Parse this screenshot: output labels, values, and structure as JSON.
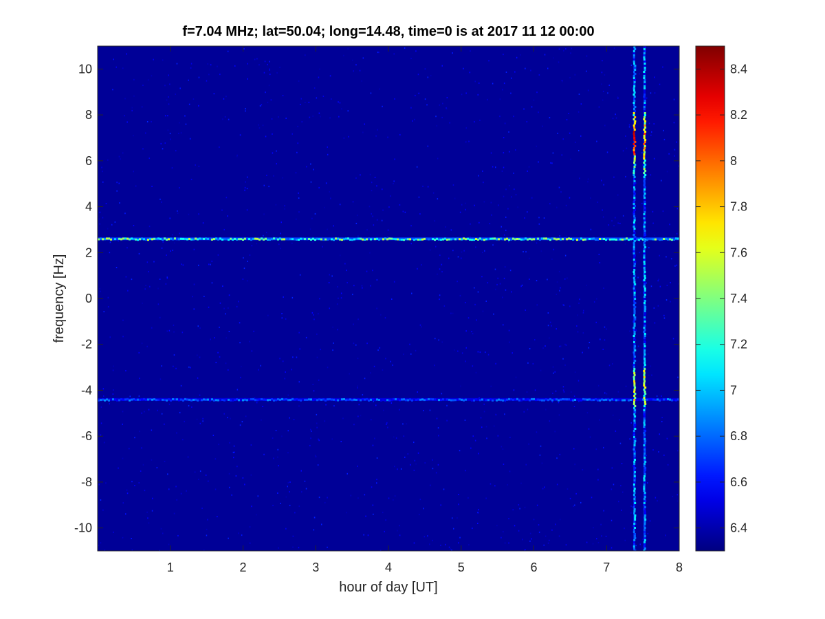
{
  "chart_data": {
    "type": "heatmap",
    "title": "f=7.04 MHz;  lat=50.04; long=14.48, time=0 is at 2017 11 12 00:00",
    "xlabel": "hour of day [UT]",
    "ylabel": "frequency [Hz]",
    "xlim": [
      0,
      8
    ],
    "ylim": [
      -11,
      11
    ],
    "x_ticks": [
      "1",
      "2",
      "3",
      "4",
      "5",
      "6",
      "7",
      "8"
    ],
    "y_ticks": [
      "-10",
      "-8",
      "-6",
      "-4",
      "-2",
      "0",
      "2",
      "4",
      "6",
      "8",
      "10"
    ],
    "colorbar": {
      "range": [
        6.3,
        8.5
      ],
      "colormap": "jet",
      "ticks": [
        "6.4",
        "6.6",
        "6.8",
        "7",
        "7.2",
        "7.4",
        "7.6",
        "7.8",
        "8",
        "8.2",
        "8.4"
      ]
    },
    "background_level": 6.35,
    "features": [
      {
        "kind": "horizontal-line",
        "frequency_hz": 2.6,
        "x_range": [
          0,
          8
        ],
        "level_min": 6.7,
        "level_max": 7.6
      },
      {
        "kind": "horizontal-line",
        "frequency_hz": -4.4,
        "x_range": [
          0,
          8
        ],
        "level_min": 6.5,
        "level_max": 6.9
      },
      {
        "kind": "vertical-burst",
        "hour": 7.38,
        "y_range": [
          -11,
          11
        ],
        "level_max": 8.4
      },
      {
        "kind": "vertical-burst",
        "hour": 7.52,
        "y_range": [
          -11,
          11
        ],
        "level_max": 8.1
      }
    ],
    "grid": false
  },
  "colors": {
    "axis": "#262626",
    "low": "#00008f",
    "high": "#800000"
  }
}
